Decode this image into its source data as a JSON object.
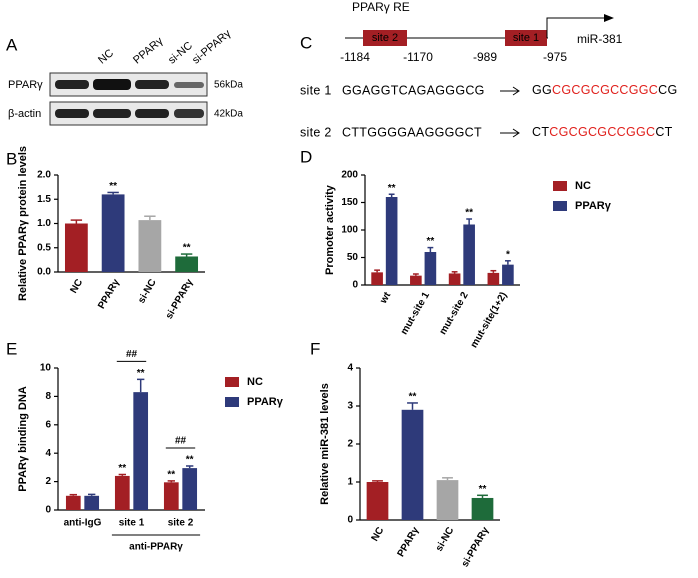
{
  "panel_labels": [
    "A",
    "B",
    "C",
    "D",
    "E",
    "F"
  ],
  "blot": {
    "lanes": [
      "NC",
      "PPARγ",
      "si-NC",
      "si-PPARγ"
    ],
    "rows": [
      {
        "name": "PPARγ",
        "size": "56kDa"
      },
      {
        "name": "β-actin",
        "size": "42kDa"
      }
    ]
  },
  "promoter": {
    "title": "PPARγ RE",
    "boxes": [
      "site 2",
      "site 1"
    ],
    "gene": "miR-381",
    "positions": [
      "-1184",
      "-1170",
      "-989",
      "-975"
    ],
    "sites": [
      {
        "name": "site 1",
        "wild": "GGAGGTCAGAGGGCG",
        "mut_pre": "GG",
        "mut_core": "CGCGCGCCGGC",
        "mut_post": "CG"
      },
      {
        "name": "site 2",
        "wild": "CTTGGGGAAGGGGCT",
        "mut_pre": "CT",
        "mut_core": "CGCGCGCCGGC",
        "mut_post": "CT"
      }
    ]
  },
  "chart_data": [
    {
      "type": "bar",
      "y_label": "Relative PPARγ protein levels",
      "categories": [
        "NC",
        "PPARγ",
        "si-NC",
        "si-PPARγ"
      ],
      "values": [
        1.0,
        1.6,
        1.07,
        0.32
      ],
      "errors": [
        0.07,
        0.04,
        0.08,
        0.05
      ],
      "colors": [
        "#a31f24",
        "#2e3a7a",
        "#a6a6a6",
        "#1e6b3a"
      ],
      "stars": [
        null,
        "**",
        null,
        "**"
      ],
      "ylim": [
        0,
        2
      ],
      "yticks": [
        {
          "value": 0,
          "label": "0.0"
        },
        0.5,
        {
          "value": 1,
          "label": "1.0"
        },
        1.5,
        {
          "value": 2,
          "label": "2.0"
        }
      ]
    },
    {
      "type": "grouped_bar",
      "y_label": "Promoter activity",
      "categories": [
        "wt",
        "mut-site 1",
        "mut-site 2",
        "mut-site(1+2)"
      ],
      "series": [
        {
          "name": "NC",
          "color": "#a31f24",
          "values": [
            23,
            17,
            21,
            22
          ],
          "errors": [
            4,
            3,
            3,
            4
          ],
          "stars": [
            null,
            null,
            null,
            null
          ]
        },
        {
          "name": "PPARγ",
          "color": "#2e3a7a",
          "values": [
            160,
            60,
            110,
            37
          ],
          "errors": [
            5,
            8,
            10,
            7
          ],
          "stars": [
            "**",
            "**",
            "**",
            "*"
          ]
        }
      ],
      "ylim": [
        0,
        200
      ],
      "yticks": [
        0,
        50,
        100,
        150,
        200
      ]
    },
    {
      "type": "grouped_bar",
      "y_label": "PPARγ binding DNA",
      "categories": [
        "anti-IgG",
        "site 1",
        "site 2"
      ],
      "group_label": "anti-PPARγ",
      "bracket_labels": [
        null,
        "##",
        "##"
      ],
      "series": [
        {
          "name": "NC",
          "color": "#a31f24",
          "values": [
            1.0,
            2.4,
            1.95
          ],
          "errors": [
            0.08,
            0.1,
            0.1
          ],
          "stars": [
            null,
            "**",
            "**"
          ]
        },
        {
          "name": "PPARγ",
          "color": "#2e3a7a",
          "values": [
            1.0,
            8.3,
            2.95
          ],
          "errors": [
            0.1,
            0.9,
            0.15
          ],
          "stars": [
            null,
            "**",
            "**"
          ]
        }
      ],
      "ylim": [
        0,
        10
      ],
      "yticks": [
        0,
        2,
        4,
        6,
        8,
        10
      ]
    },
    {
      "type": "bar",
      "y_label": "Relative miR-381 levels",
      "categories": [
        "NC",
        "PPARγ",
        "si-NC",
        "si-PPARγ"
      ],
      "values": [
        1.0,
        2.9,
        1.05,
        0.58
      ],
      "errors": [
        0.03,
        0.18,
        0.06,
        0.07
      ],
      "colors": [
        "#a31f24",
        "#2e3a7a",
        "#a6a6a6",
        "#1e6b3a"
      ],
      "stars": [
        null,
        "**",
        null,
        "**"
      ],
      "ylim": [
        0,
        4
      ],
      "yticks": [
        0,
        1,
        2,
        3,
        4
      ]
    }
  ]
}
